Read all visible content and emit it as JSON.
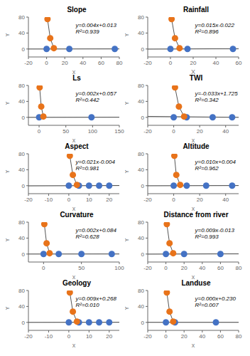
{
  "chart_data": [
    {
      "type": "scatter",
      "title": "Slope",
      "x_label": "x",
      "y_label": "Y",
      "xlim": [
        -20,
        80
      ],
      "ylim": [
        -20,
        80
      ],
      "xticks": [
        -20,
        0,
        20,
        40,
        60,
        80
      ],
      "yticks": [
        0,
        40,
        80
      ],
      "annotations": [
        "y=0.004x+0.013",
        "R²=0.939"
      ],
      "hline": 0,
      "series": [
        {
          "type": "line",
          "color": "#555555",
          "x": [
            -20,
            80
          ],
          "values": [
            -0.067,
            0.333
          ]
        },
        {
          "type": "line",
          "color": "#555555",
          "x": [
            1,
            4,
            8
          ],
          "values": [
            75,
            27,
            2
          ]
        },
        {
          "type": "scatter",
          "marker": "circle",
          "color": "#4472C4",
          "x": [
            0,
            25,
            75
          ],
          "values": [
            0,
            0,
            0
          ]
        },
        {
          "type": "scatter",
          "marker": "circle",
          "color": "#E8731A",
          "x": [
            1,
            4,
            8
          ],
          "values": [
            75,
            27,
            2
          ]
        }
      ]
    },
    {
      "type": "scatter",
      "title": "Rainfall",
      "x_label": "X",
      "y_label": "Y",
      "xlim": [
        -20,
        60
      ],
      "ylim": [
        -20,
        80
      ],
      "xticks": [
        -20,
        0,
        20,
        40,
        60
      ],
      "yticks": [
        0,
        40,
        80
      ],
      "annotations": [
        "y=0.015x-0.022",
        "R²=0.896"
      ],
      "hline": 0,
      "series": [
        {
          "type": "line",
          "color": "#555555",
          "x": [
            -20,
            60
          ],
          "values": [
            -0.322,
            0.878
          ]
        },
        {
          "type": "line",
          "color": "#555555",
          "x": [
            1,
            4,
            8
          ],
          "values": [
            75,
            27,
            2
          ]
        },
        {
          "type": "scatter",
          "marker": "circle",
          "color": "#4472C4",
          "x": [
            0,
            15,
            55
          ],
          "values": [
            0,
            0,
            0
          ]
        },
        {
          "type": "scatter",
          "marker": "circle",
          "color": "#E8731A",
          "x": [
            1,
            4,
            8
          ],
          "values": [
            75,
            27,
            2
          ]
        }
      ]
    },
    {
      "type": "scatter",
      "title": "Ls",
      "x_label": "x",
      "y_label": "Y",
      "xlim": [
        -20,
        150
      ],
      "ylim": [
        -20,
        80
      ],
      "xticks": [
        0,
        50,
        100,
        150
      ],
      "yticks": [
        0,
        40,
        80
      ],
      "annotations": [
        "y=0.002x+0.057",
        "R²=0.442"
      ],
      "hline": 0,
      "series": [
        {
          "type": "line",
          "color": "#555555",
          "x": [
            -20,
            150
          ],
          "values": [
            0.017,
            0.357
          ]
        },
        {
          "type": "line",
          "color": "#555555",
          "x": [
            1,
            4,
            8
          ],
          "values": [
            75,
            27,
            2
          ]
        },
        {
          "type": "scatter",
          "marker": "circle",
          "color": "#4472C4",
          "x": [
            0,
            98
          ],
          "values": [
            0,
            0
          ]
        },
        {
          "type": "scatter",
          "marker": "circle",
          "color": "#E8731A",
          "x": [
            1,
            4,
            8
          ],
          "values": [
            75,
            27,
            2
          ]
        }
      ]
    },
    {
      "type": "scatter",
      "title": "TWI",
      "x_label": "x",
      "y_label": "Y",
      "xlim": [
        -20,
        50
      ],
      "ylim": [
        -20,
        80
      ],
      "xticks": [
        -20,
        0,
        20,
        40
      ],
      "yticks": [
        0,
        40,
        80
      ],
      "annotations": [
        "y=-0.033x+1.725",
        "R²=0.342"
      ],
      "hline": 0,
      "series": [
        {
          "type": "line",
          "color": "#555555",
          "x": [
            -20,
            50
          ],
          "values": [
            2.385,
            0.075
          ]
        },
        {
          "type": "line",
          "color": "#555555",
          "x": [
            1,
            4,
            8
          ],
          "values": [
            75,
            27,
            2
          ]
        },
        {
          "type": "scatter",
          "marker": "circle",
          "color": "#4472C4",
          "x": [
            0,
            10,
            30,
            45
          ],
          "values": [
            0,
            0,
            0,
            0
          ]
        },
        {
          "type": "scatter",
          "marker": "circle",
          "color": "#E8731A",
          "x": [
            1,
            4,
            8
          ],
          "values": [
            75,
            27,
            2
          ]
        }
      ]
    },
    {
      "type": "scatter",
      "title": "Aspect",
      "x_label": "x",
      "y_label": "Y",
      "xlim": [
        -20,
        25
      ],
      "ylim": [
        -20,
        80
      ],
      "xticks": [
        -20,
        -10,
        0,
        10,
        20
      ],
      "yticks": [
        0,
        40,
        80
      ],
      "annotations": [
        "y=0.021x-0.004",
        "R²=0.981"
      ],
      "hline": 0,
      "series": [
        {
          "type": "line",
          "color": "#555555",
          "x": [
            -20,
            25
          ],
          "values": [
            -0.424,
            0.521
          ]
        },
        {
          "type": "line",
          "color": "#555555",
          "x": [
            0.5,
            2,
            4
          ],
          "values": [
            75,
            27,
            2
          ]
        },
        {
          "type": "scatter",
          "marker": "circle",
          "color": "#4472C4",
          "x": [
            0,
            5,
            10,
            15,
            20
          ],
          "values": [
            0,
            0,
            0,
            0,
            0
          ]
        },
        {
          "type": "scatter",
          "marker": "circle",
          "color": "#E8731A",
          "x": [
            0.5,
            2,
            4
          ],
          "values": [
            75,
            27,
            2
          ]
        }
      ]
    },
    {
      "type": "scatter",
      "title": "Altitude",
      "x_label": "x",
      "y_label": "Y",
      "xlim": [
        -20,
        50
      ],
      "ylim": [
        -20,
        80
      ],
      "xticks": [
        -20,
        0,
        20,
        40
      ],
      "yticks": [
        0,
        40,
        80
      ],
      "annotations": [
        "y=0.010x+0.004",
        "R²=0.962"
      ],
      "hline": 0,
      "series": [
        {
          "type": "line",
          "color": "#555555",
          "x": [
            -20,
            50
          ],
          "values": [
            -0.196,
            0.504
          ]
        },
        {
          "type": "line",
          "color": "#555555",
          "x": [
            0.5,
            2,
            5
          ],
          "values": [
            75,
            27,
            2
          ]
        },
        {
          "type": "scatter",
          "marker": "circle",
          "color": "#4472C4",
          "x": [
            0,
            10,
            25,
            45
          ],
          "values": [
            0,
            0,
            0,
            0
          ]
        },
        {
          "type": "scatter",
          "marker": "circle",
          "color": "#E8731A",
          "x": [
            0.5,
            2,
            5
          ],
          "values": [
            75,
            27,
            2
          ]
        }
      ]
    },
    {
      "type": "scatter",
      "title": "Curvature",
      "x_label": "x",
      "y_label": "Y",
      "xlim": [
        -20,
        100
      ],
      "ylim": [
        -20,
        80
      ],
      "xticks": [
        0,
        50,
        100
      ],
      "yticks": [
        0,
        40,
        80
      ],
      "annotations": [
        "y=0.002x+0.084",
        "R²=0.628"
      ],
      "hline": 0,
      "series": [
        {
          "type": "line",
          "color": "#555555",
          "x": [
            -20,
            100
          ],
          "values": [
            0.044,
            0.284
          ]
        },
        {
          "type": "line",
          "color": "#555555",
          "x": [
            1,
            4,
            8
          ],
          "values": [
            75,
            27,
            2
          ]
        },
        {
          "type": "scatter",
          "marker": "circle",
          "color": "#4472C4",
          "x": [
            0,
            20,
            50,
            90
          ],
          "values": [
            0,
            0,
            0,
            0
          ]
        },
        {
          "type": "scatter",
          "marker": "circle",
          "color": "#E8731A",
          "x": [
            1,
            4,
            8
          ],
          "values": [
            75,
            27,
            2
          ]
        }
      ]
    },
    {
      "type": "scatter",
      "title": "Distance from river",
      "x_label": "x",
      "y_label": "Y",
      "xlim": [
        -20,
        80
      ],
      "ylim": [
        -20,
        80
      ],
      "xticks": [
        -20,
        0,
        20,
        40,
        60,
        80
      ],
      "yticks": [
        0,
        40,
        80
      ],
      "annotations": [
        "y=0.009x-0.013",
        "R²=0.993"
      ],
      "hline": 0,
      "series": [
        {
          "type": "line",
          "color": "#555555",
          "x": [
            -20,
            80
          ],
          "values": [
            -0.193,
            0.707
          ]
        },
        {
          "type": "line",
          "color": "#555555",
          "x": [
            1,
            4,
            8
          ],
          "values": [
            75,
            27,
            2
          ]
        },
        {
          "type": "scatter",
          "marker": "circle",
          "color": "#4472C4",
          "x": [
            0,
            20,
            60
          ],
          "values": [
            0,
            0,
            0
          ]
        },
        {
          "type": "scatter",
          "marker": "circle",
          "color": "#E8731A",
          "x": [
            1,
            4,
            8
          ],
          "values": [
            75,
            27,
            2
          ]
        }
      ]
    },
    {
      "type": "scatter",
      "title": "Geology",
      "x_label": "x",
      "y_label": "Y",
      "xlim": [
        -20,
        25
      ],
      "ylim": [
        -20,
        80
      ],
      "xticks": [
        -20,
        -10,
        0,
        10,
        20
      ],
      "yticks": [
        0,
        40,
        80
      ],
      "annotations": [
        "y=0.009x+0.268",
        "R²=0.010"
      ],
      "hline": 0,
      "series": [
        {
          "type": "line",
          "color": "#555555",
          "x": [
            -20,
            25
          ],
          "values": [
            0.088,
            0.493
          ]
        },
        {
          "type": "line",
          "color": "#555555",
          "x": [
            0.5,
            2,
            4
          ],
          "values": [
            75,
            27,
            2
          ]
        },
        {
          "type": "scatter",
          "marker": "circle",
          "color": "#4472C4",
          "x": [
            0,
            5,
            10,
            15,
            20
          ],
          "values": [
            0,
            0,
            0,
            0,
            0
          ]
        },
        {
          "type": "scatter",
          "marker": "circle",
          "color": "#E8731A",
          "x": [
            0.5,
            2,
            4
          ],
          "values": [
            75,
            27,
            2
          ]
        }
      ]
    },
    {
      "type": "scatter",
      "title": "Landuse",
      "x_label": "x",
      "y_label": "Y",
      "xlim": [
        -20,
        80
      ],
      "ylim": [
        -20,
        80
      ],
      "xticks": [
        -20,
        0,
        20,
        40,
        60,
        80
      ],
      "yticks": [
        0,
        40,
        80
      ],
      "annotations": [
        "y=0.000x+0.230",
        "R²=0.007"
      ],
      "hline": 0,
      "series": [
        {
          "type": "line",
          "color": "#555555",
          "x": [
            -20,
            80
          ],
          "values": [
            0.23,
            0.23
          ]
        },
        {
          "type": "line",
          "color": "#555555",
          "x": [
            1,
            4,
            8
          ],
          "values": [
            75,
            27,
            2
          ]
        },
        {
          "type": "scatter",
          "marker": "circle",
          "color": "#4472C4",
          "x": [
            0,
            10,
            55
          ],
          "values": [
            0,
            0,
            0
          ]
        },
        {
          "type": "scatter",
          "marker": "circle",
          "color": "#E8731A",
          "x": [
            1,
            4,
            8
          ],
          "values": [
            75,
            27,
            2
          ]
        }
      ]
    }
  ]
}
